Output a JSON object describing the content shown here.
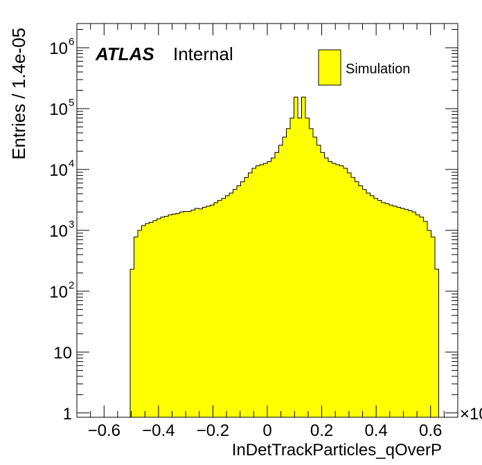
{
  "chart_data": {
    "type": "histogram",
    "xlabel": "InDetTrackParticles_qOverP",
    "ylabel": "Entries / 1.4e-05",
    "x_exponent_label": "×10",
    "xlim": [
      -0.7,
      0.7
    ],
    "ylim_log": [
      0.85,
      2500000
    ],
    "log_y": true,
    "x_ticks": [
      -0.6,
      -0.4,
      -0.2,
      0,
      0.2,
      0.4,
      0.6
    ],
    "x_tick_labels": [
      "−0.6",
      "−0.4",
      "−0.2",
      "0",
      "0.2",
      "0.4",
      "0.6"
    ],
    "y_ticks": [
      {
        "value": 1,
        "base": "1",
        "exp": ""
      },
      {
        "value": 10,
        "base": "10",
        "exp": ""
      },
      {
        "value": 100,
        "base": "10",
        "exp": "2"
      },
      {
        "value": 1000,
        "base": "10",
        "exp": "3"
      },
      {
        "value": 10000,
        "base": "10",
        "exp": "4"
      },
      {
        "value": 100000,
        "base": "10",
        "exp": "5"
      },
      {
        "value": 1000000,
        "base": "10",
        "exp": "6"
      }
    ],
    "atlas_label": "ATLAS",
    "atlas_sub": "Internal",
    "series": [
      {
        "name": "Simulation",
        "color": "#ffff00",
        "bin_width": 0.014,
        "bin_start": -0.504,
        "values": [
          230,
          780,
          1000,
          1200,
          1300,
          1350,
          1450,
          1550,
          1650,
          1700,
          1800,
          1850,
          1900,
          2000,
          2050,
          2050,
          2150,
          2300,
          2250,
          2400,
          2500,
          2600,
          2850,
          3100,
          3350,
          3700,
          4100,
          4700,
          5400,
          6300,
          7400,
          8800,
          10500,
          11500,
          12000,
          12600,
          13500,
          15500,
          19000,
          25000,
          34000,
          47000,
          70000,
          155000,
          70000,
          155000,
          70000,
          47000,
          34000,
          25000,
          19000,
          15500,
          13500,
          12600,
          12000,
          11500,
          10500,
          8800,
          7400,
          6300,
          5400,
          4700,
          4100,
          3700,
          3350,
          3100,
          2850,
          2750,
          2600,
          2500,
          2400,
          2300,
          2200,
          2100,
          2000,
          1800,
          1650,
          1400,
          1000,
          780,
          230
        ]
      }
    ],
    "legend": {
      "placement": "top-right",
      "entries": [
        "Simulation"
      ]
    }
  }
}
